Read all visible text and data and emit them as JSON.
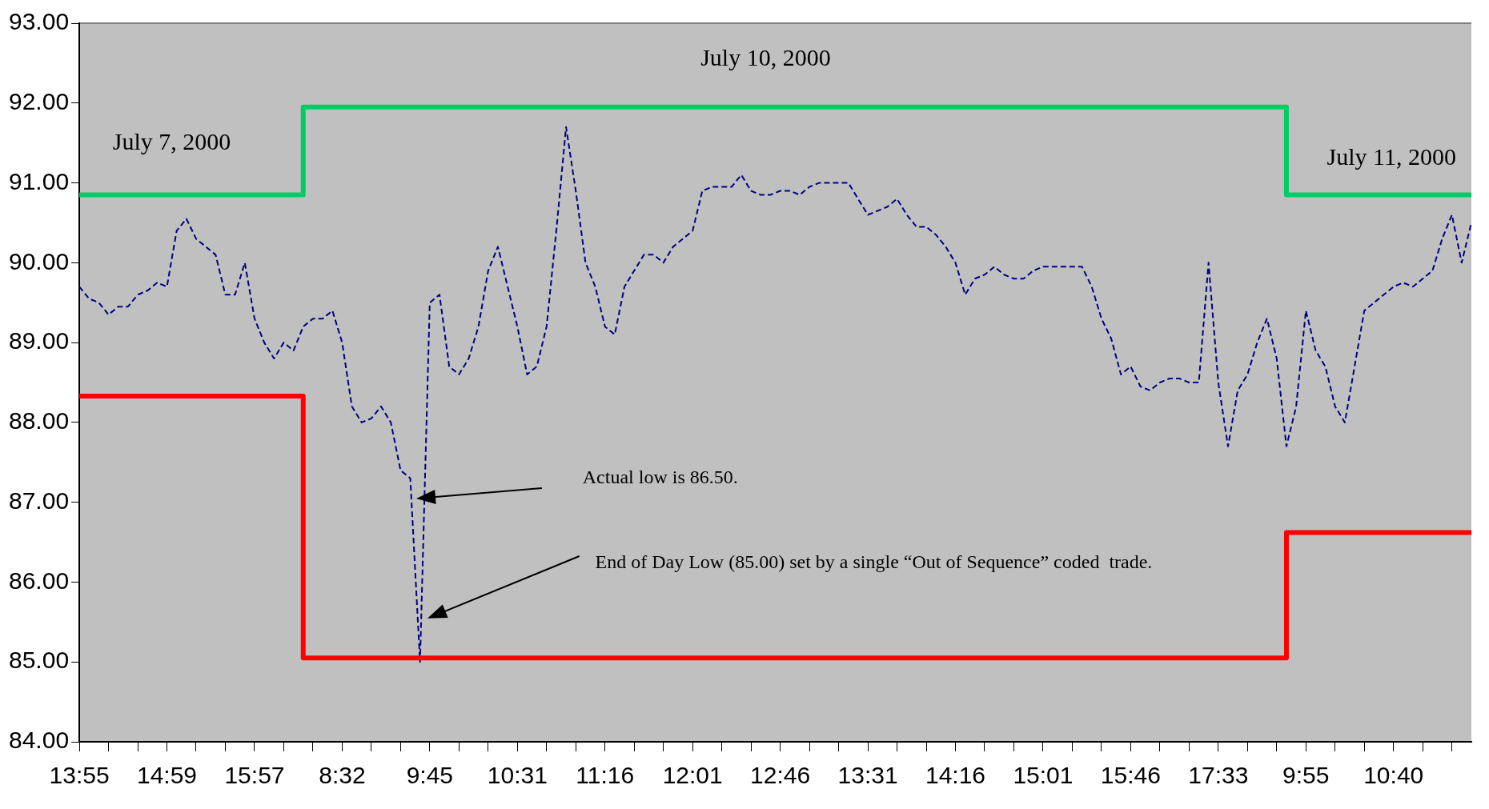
{
  "chart_data": {
    "type": "line",
    "categories": [
      "13:55",
      null,
      null,
      null,
      null,
      null,
      null,
      null,
      null,
      "14:59",
      null,
      null,
      null,
      null,
      null,
      null,
      null,
      null,
      "15:57",
      null,
      null,
      null,
      null,
      null,
      null,
      null,
      null,
      "8:32",
      null,
      null,
      null,
      null,
      null,
      null,
      null,
      null,
      "9:45",
      null,
      null,
      null,
      null,
      null,
      null,
      null,
      null,
      "10:31",
      null,
      null,
      null,
      null,
      null,
      null,
      null,
      null,
      "11:16",
      null,
      null,
      null,
      null,
      null,
      null,
      null,
      null,
      "12:01",
      null,
      null,
      null,
      null,
      null,
      null,
      null,
      null,
      "12:46",
      null,
      null,
      null,
      null,
      null,
      null,
      null,
      null,
      "13:31",
      null,
      null,
      null,
      null,
      null,
      null,
      null,
      null,
      "14:16",
      null,
      null,
      null,
      null,
      null,
      null,
      null,
      null,
      "15:01",
      null,
      null,
      null,
      null,
      null,
      null,
      null,
      null,
      "15:46",
      null,
      null,
      null,
      null,
      null,
      null,
      null,
      null,
      "17:33",
      null,
      null,
      null,
      null,
      null,
      null,
      null,
      null,
      "9:55",
      null,
      null,
      null,
      null,
      null,
      null,
      null,
      null,
      "10:40",
      null,
      null,
      null,
      null,
      null,
      null,
      null,
      null
    ],
    "series": [
      {
        "type": "step",
        "color": "#00cc66",
        "values": [
          90.85,
          90.85,
          90.85,
          90.85,
          90.85,
          90.85,
          90.85,
          90.85,
          90.85,
          90.85,
          90.85,
          90.85,
          90.85,
          90.85,
          90.85,
          90.85,
          90.85,
          90.85,
          90.85,
          90.85,
          90.85,
          90.85,
          90.85,
          90.85,
          91.95,
          91.95,
          91.95,
          91.95,
          91.95,
          91.95,
          91.95,
          91.95,
          91.95,
          91.95,
          91.95,
          91.95,
          91.95,
          91.95,
          91.95,
          91.95,
          91.95,
          91.95,
          91.95,
          91.95,
          91.95,
          91.95,
          91.95,
          91.95,
          91.95,
          91.95,
          91.95,
          91.95,
          91.95,
          91.95,
          91.95,
          91.95,
          91.95,
          91.95,
          91.95,
          91.95,
          91.95,
          91.95,
          91.95,
          91.95,
          91.95,
          91.95,
          91.95,
          91.95,
          91.95,
          91.95,
          91.95,
          91.95,
          91.95,
          91.95,
          91.95,
          91.95,
          91.95,
          91.95,
          91.95,
          91.95,
          91.95,
          91.95,
          91.95,
          91.95,
          91.95,
          91.95,
          91.95,
          91.95,
          91.95,
          91.95,
          91.95,
          91.95,
          91.95,
          91.95,
          91.95,
          91.95,
          91.95,
          91.95,
          91.95,
          91.95,
          91.95,
          91.95,
          91.95,
          91.95,
          91.95,
          91.95,
          91.95,
          91.95,
          91.95,
          91.95,
          91.95,
          91.95,
          91.95,
          91.95,
          91.95,
          91.95,
          91.95,
          91.95,
          91.95,
          91.95,
          91.95,
          91.95,
          91.95,
          91.95,
          91.95,
          90.85,
          90.85,
          90.85,
          90.85,
          90.85,
          90.85,
          90.85,
          90.85,
          90.85,
          90.85,
          90.85,
          90.85,
          90.85,
          90.85,
          90.85,
          90.85,
          90.85,
          90.85,
          90.85
        ]
      },
      {
        "type": "step",
        "color": "#ff0000",
        "values": [
          88.33,
          88.33,
          88.33,
          88.33,
          88.33,
          88.33,
          88.33,
          88.33,
          88.33,
          88.33,
          88.33,
          88.33,
          88.33,
          88.33,
          88.33,
          88.33,
          88.33,
          88.33,
          88.33,
          88.33,
          88.33,
          88.33,
          88.33,
          88.33,
          85.05,
          85.05,
          85.05,
          85.05,
          85.05,
          85.05,
          85.05,
          85.05,
          85.05,
          85.05,
          85.05,
          85.05,
          85.05,
          85.05,
          85.05,
          85.05,
          85.05,
          85.05,
          85.05,
          85.05,
          85.05,
          85.05,
          85.05,
          85.05,
          85.05,
          85.05,
          85.05,
          85.05,
          85.05,
          85.05,
          85.05,
          85.05,
          85.05,
          85.05,
          85.05,
          85.05,
          85.05,
          85.05,
          85.05,
          85.05,
          85.05,
          85.05,
          85.05,
          85.05,
          85.05,
          85.05,
          85.05,
          85.05,
          85.05,
          85.05,
          85.05,
          85.05,
          85.05,
          85.05,
          85.05,
          85.05,
          85.05,
          85.05,
          85.05,
          85.05,
          85.05,
          85.05,
          85.05,
          85.05,
          85.05,
          85.05,
          85.05,
          85.05,
          85.05,
          85.05,
          85.05,
          85.05,
          85.05,
          85.05,
          85.05,
          85.05,
          85.05,
          85.05,
          85.05,
          85.05,
          85.05,
          85.05,
          85.05,
          85.05,
          85.05,
          85.05,
          85.05,
          85.05,
          85.05,
          85.05,
          85.05,
          85.05,
          85.05,
          85.05,
          85.05,
          85.05,
          85.05,
          85.05,
          85.05,
          85.05,
          85.05,
          86.62,
          86.62,
          86.62,
          86.62,
          86.62,
          86.62,
          86.62,
          86.62,
          86.62,
          86.62,
          86.62,
          86.62,
          86.62,
          86.62,
          86.62,
          86.62,
          86.62,
          86.62,
          86.62
        ]
      },
      {
        "type": "line",
        "color": "#000080",
        "line_style": "dashed",
        "values": [
          89.7,
          89.55,
          89.5,
          89.35,
          89.45,
          89.45,
          89.6,
          89.65,
          89.75,
          89.7,
          90.4,
          90.55,
          90.3,
          90.2,
          90.1,
          89.6,
          89.6,
          90.0,
          89.3,
          89.0,
          88.8,
          89.0,
          88.9,
          89.2,
          89.3,
          89.3,
          89.4,
          89.0,
          88.2,
          88.0,
          88.05,
          88.2,
          88.0,
          87.4,
          87.3,
          85.0,
          89.5,
          89.6,
          88.7,
          88.6,
          88.8,
          89.2,
          89.9,
          90.2,
          89.7,
          89.2,
          88.6,
          88.7,
          89.2,
          90.4,
          91.7,
          90.9,
          90.0,
          89.7,
          89.2,
          89.1,
          89.7,
          89.9,
          90.1,
          90.1,
          90.0,
          90.2,
          90.3,
          90.4,
          90.9,
          90.95,
          90.95,
          90.95,
          91.1,
          90.9,
          90.85,
          90.85,
          90.9,
          90.9,
          90.85,
          90.95,
          91.0,
          91.0,
          91.0,
          91.0,
          90.8,
          90.6,
          90.65,
          90.7,
          90.8,
          90.6,
          90.45,
          90.45,
          90.35,
          90.2,
          90.0,
          89.6,
          89.8,
          89.85,
          89.95,
          89.85,
          89.8,
          89.8,
          89.9,
          89.95,
          89.95,
          89.95,
          89.95,
          89.95,
          89.7,
          89.3,
          89.05,
          88.6,
          88.7,
          88.45,
          88.4,
          88.5,
          88.55,
          88.55,
          88.5,
          88.5,
          90.0,
          88.5,
          87.7,
          88.4,
          88.6,
          89.0,
          89.3,
          88.8,
          87.7,
          88.2,
          89.4,
          88.9,
          88.7,
          88.2,
          88.0,
          88.7,
          89.4,
          89.5,
          89.6,
          89.7,
          89.75,
          89.7,
          89.8,
          89.9,
          90.3,
          90.6,
          90.0,
          90.5
        ]
      }
    ],
    "ylim": [
      84,
      93
    ],
    "yticks": [
      {
        "value": 84,
        "label": "84.00"
      },
      {
        "value": 85,
        "label": "85.00"
      },
      {
        "value": 86,
        "label": "86.00"
      },
      {
        "value": 87,
        "label": "87.00"
      },
      {
        "value": 88,
        "label": "88.00"
      },
      {
        "value": 89,
        "label": "89.00"
      },
      {
        "value": 90,
        "label": "90.00"
      },
      {
        "value": 91,
        "label": "91.00"
      },
      {
        "value": 92,
        "label": "92.00"
      },
      {
        "value": 93,
        "label": "93.00"
      }
    ],
    "annotations": [
      "July 7, 2000",
      "July 10, 2000",
      "July 11, 2000",
      "Actual low is 86.50.",
      "End of Day Low (85.00) set by a single “Out of Sequence” coded  trade."
    ]
  }
}
